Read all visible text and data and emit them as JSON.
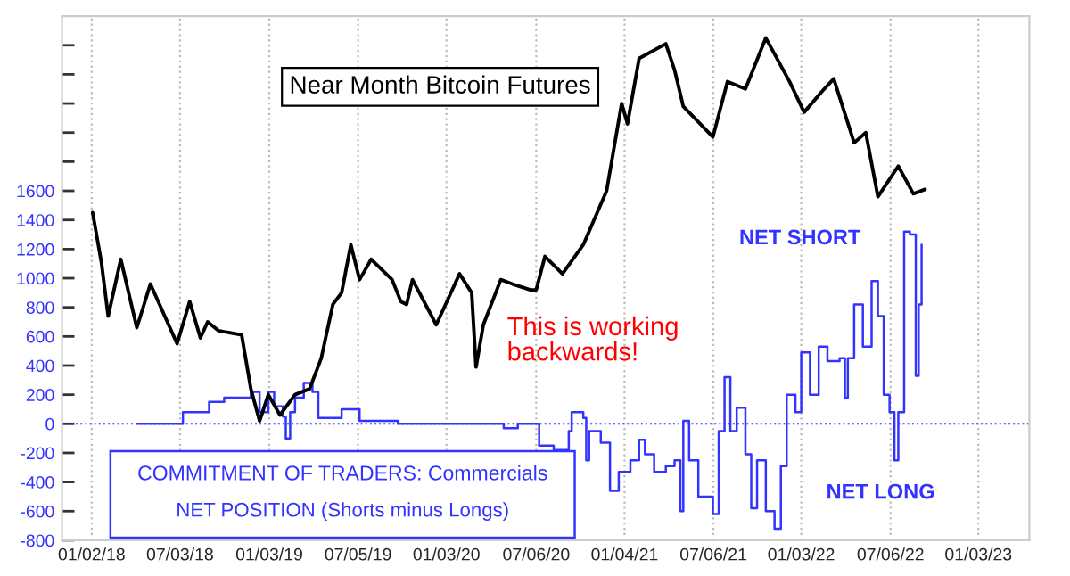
{
  "chart_data": {
    "type": "line",
    "annotations": [
      "Near Month Bitcoin Futures",
      "COMMITMENT OF TRADERS: Commercials",
      "NET POSITION (Shorts minus Longs)",
      "This is working\nbackwards!",
      "NET SHORT",
      "NET LONG"
    ],
    "xlim": [
      "2017-11-02",
      "2023-04-18"
    ],
    "xticks": [
      {
        "value": "2018-01-02",
        "label": "01/02/18"
      },
      {
        "value": "2018-07-03",
        "label": "07/03/18"
      },
      {
        "value": "2019-01-03",
        "label": "01/03/19"
      },
      {
        "value": "2019-07-05",
        "label": "07/05/19"
      },
      {
        "value": "2020-01-03",
        "label": "01/03/20"
      },
      {
        "value": "2020-07-06",
        "label": "07/06/20"
      },
      {
        "value": "2021-01-04",
        "label": "01/04/21"
      },
      {
        "value": "2021-07-06",
        "label": "07/06/21"
      },
      {
        "value": "2022-01-03",
        "label": "01/03/22"
      },
      {
        "value": "2022-07-06",
        "label": "07/06/22"
      },
      {
        "value": "2023-01-03",
        "label": "01/03/23"
      }
    ],
    "ylim": [
      -800,
      2800
    ],
    "yticks": [
      -800,
      -600,
      -400,
      -200,
      0,
      200,
      400,
      600,
      800,
      1000,
      1200,
      1400,
      1600,
      {
        "value": 1800,
        "label": null
      },
      {
        "value": 2000,
        "label": null
      },
      {
        "value": 2200,
        "label": null
      },
      {
        "value": 2400,
        "label": null
      },
      {
        "value": 2600,
        "label": null
      }
    ],
    "grid": "x",
    "ref_lines": [
      {
        "axis": "y",
        "value": 0,
        "label": null,
        "color": "#3333ff",
        "line_style": "dotted"
      }
    ],
    "series": [
      {
        "color": "#000000",
        "x": [
          "2018-01-04",
          "2018-01-22",
          "2018-02-05",
          "2018-03-03",
          "2018-04-05",
          "2018-05-03",
          "2018-06-27",
          "2018-07-23",
          "2018-08-14",
          "2018-08-29",
          "2018-09-20",
          "2018-11-07",
          "2018-11-26",
          "2018-12-14",
          "2019-01-01",
          "2019-01-25",
          "2019-02-25",
          "2019-03-27",
          "2019-04-20",
          "2019-05-14",
          "2019-06-01",
          "2019-06-20",
          "2019-07-08",
          "2019-08-01",
          "2019-09-13",
          "2019-10-01",
          "2019-10-13",
          "2019-10-25",
          "2019-12-13",
          "2020-01-30",
          "2020-02-24",
          "2020-03-04",
          "2020-03-19",
          "2020-04-24",
          "2020-05-18",
          "2020-06-24",
          "2020-07-06",
          "2020-07-24",
          "2020-08-29",
          "2020-10-11",
          "2020-11-28",
          "2020-12-29",
          "2021-01-10",
          "2021-02-03",
          "2021-03-30",
          "2021-04-17",
          "2021-05-05",
          "2021-07-05",
          "2021-08-04",
          "2021-09-10",
          "2021-10-22",
          "2021-12-10",
          "2022-01-09",
          "2022-02-14",
          "2022-03-11",
          "2022-04-22",
          "2022-05-16",
          "2022-06-10",
          "2022-07-22",
          "2022-08-22",
          "2022-09-15"
        ],
        "values": [
          1450,
          1110,
          740,
          1130,
          660,
          960,
          550,
          840,
          590,
          700,
          640,
          610,
          240,
          20,
          200,
          60,
          200,
          240,
          450,
          820,
          900,
          1230,
          990,
          1130,
          990,
          840,
          820,
          990,
          680,
          1030,
          900,
          390,
          680,
          990,
          960,
          920,
          920,
          1150,
          1030,
          1230,
          1600,
          2200,
          2060,
          2510,
          2610,
          2430,
          2180,
          1970,
          2350,
          2300,
          2650,
          2350,
          2140,
          2280,
          2370,
          1930,
          2000,
          1560,
          1770,
          1580,
          1610
        ]
      },
      {
        "type": "step",
        "color": "#3333ff",
        "x": [
          "2018-04-06",
          "2018-07-09",
          "2018-09-01",
          "2018-10-02",
          "2018-11-26",
          "2018-12-14",
          "2019-01-01",
          "2019-01-13",
          "2019-01-31",
          "2019-02-06",
          "2019-02-15",
          "2019-02-25",
          "2019-03-15",
          "2019-04-02",
          "2019-04-14",
          "2019-06-01",
          "2019-07-08",
          "2019-09-25",
          "2020-04-30",
          "2020-05-29",
          "2020-07-12",
          "2020-08-11",
          "2020-09-11",
          "2020-09-17",
          "2020-10-11",
          "2020-10-17",
          "2020-10-23",
          "2020-11-16",
          "2020-12-05",
          "2020-12-23",
          "2021-01-16",
          "2021-02-03",
          "2021-02-15",
          "2021-03-06",
          "2021-03-30",
          "2021-04-17",
          "2021-04-29",
          "2021-05-05",
          "2021-05-17",
          "2021-06-05",
          "2021-07-05",
          "2021-07-17",
          "2021-07-29",
          "2021-08-10",
          "2021-08-23",
          "2021-09-10",
          "2021-09-22",
          "2021-10-04",
          "2021-10-22",
          "2021-11-09",
          "2021-11-22",
          "2021-12-04",
          "2021-12-22",
          "2022-01-03",
          "2022-01-21",
          "2022-02-08",
          "2022-02-26",
          "2022-03-23",
          "2022-04-03",
          "2022-04-09",
          "2022-04-22",
          "2022-05-10",
          "2022-05-28",
          "2022-06-10",
          "2022-06-22",
          "2022-07-04",
          "2022-07-14",
          "2022-07-22",
          "2022-08-03",
          "2022-08-15",
          "2022-08-27",
          "2022-09-02",
          "2022-09-08"
        ],
        "values": [
          0,
          80,
          150,
          180,
          220,
          80,
          220,
          120,
          50,
          -100,
          80,
          180,
          280,
          220,
          40,
          100,
          20,
          0,
          -30,
          0,
          -150,
          -180,
          -50,
          80,
          40,
          -250,
          -50,
          -130,
          -460,
          -330,
          -250,
          -110,
          -210,
          -330,
          -290,
          -250,
          -600,
          20,
          -250,
          -500,
          -620,
          -50,
          320,
          -50,
          110,
          -210,
          -580,
          -250,
          -600,
          -720,
          -290,
          200,
          80,
          490,
          200,
          530,
          430,
          450,
          180,
          450,
          820,
          530,
          980,
          740,
          200,
          80,
          -250,
          80,
          1320,
          1300,
          330,
          820,
          1230
        ]
      }
    ]
  }
}
